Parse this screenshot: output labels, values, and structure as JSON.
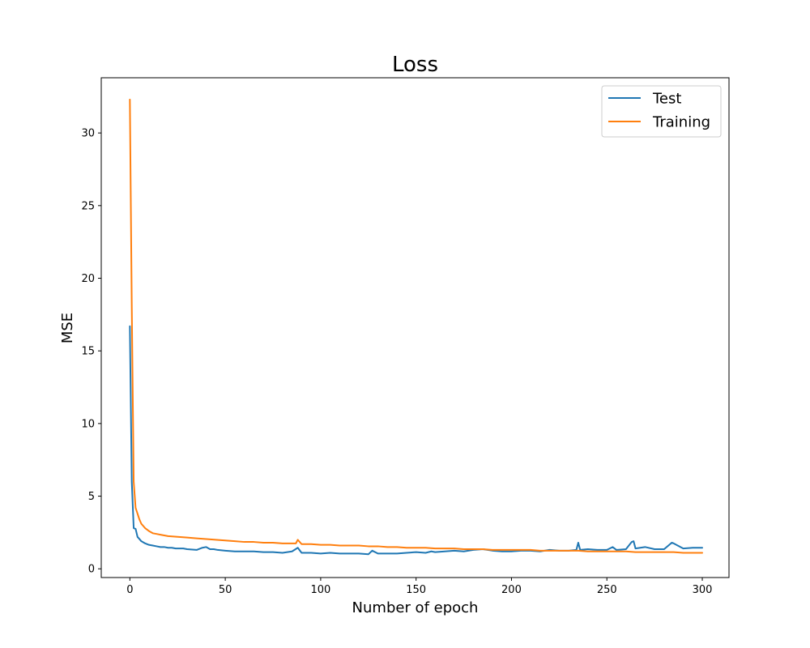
{
  "chart_data": {
    "type": "line",
    "title": "Loss",
    "xlabel": "Number of epoch",
    "ylabel": "MSE",
    "xlim": [
      -15,
      314
    ],
    "ylim": [
      -0.6,
      33.8
    ],
    "xticks": [
      0,
      50,
      100,
      150,
      200,
      250,
      300
    ],
    "yticks": [
      0,
      5,
      10,
      15,
      20,
      25,
      30
    ],
    "grid": false,
    "legend_position": "top-right",
    "series": [
      {
        "name": "Test",
        "color": "#1f77b4",
        "x": [
          0,
          1,
          2,
          3,
          4,
          5,
          6,
          8,
          10,
          12,
          14,
          16,
          18,
          20,
          22,
          24,
          26,
          28,
          30,
          35,
          38,
          40,
          42,
          44,
          46,
          50,
          55,
          60,
          65,
          70,
          75,
          80,
          85,
          88,
          90,
          95,
          100,
          105,
          110,
          115,
          120,
          125,
          127,
          130,
          135,
          140,
          145,
          150,
          155,
          158,
          160,
          165,
          170,
          175,
          180,
          185,
          190,
          195,
          200,
          205,
          210,
          215,
          220,
          225,
          230,
          234,
          235,
          236,
          240,
          245,
          250,
          253,
          255,
          260,
          263,
          264,
          265,
          270,
          275,
          280,
          284,
          285,
          290,
          295,
          300
        ],
        "y": [
          16.7,
          6.0,
          2.8,
          2.75,
          2.2,
          2.05,
          1.9,
          1.75,
          1.65,
          1.6,
          1.55,
          1.5,
          1.5,
          1.45,
          1.45,
          1.4,
          1.4,
          1.4,
          1.35,
          1.3,
          1.45,
          1.5,
          1.35,
          1.35,
          1.3,
          1.25,
          1.2,
          1.2,
          1.2,
          1.15,
          1.15,
          1.1,
          1.2,
          1.45,
          1.1,
          1.1,
          1.05,
          1.1,
          1.05,
          1.05,
          1.05,
          1.0,
          1.25,
          1.05,
          1.05,
          1.05,
          1.1,
          1.15,
          1.1,
          1.2,
          1.15,
          1.2,
          1.25,
          1.2,
          1.3,
          1.35,
          1.25,
          1.2,
          1.2,
          1.25,
          1.25,
          1.2,
          1.3,
          1.25,
          1.25,
          1.3,
          1.8,
          1.3,
          1.35,
          1.3,
          1.3,
          1.5,
          1.3,
          1.35,
          1.85,
          1.9,
          1.4,
          1.5,
          1.35,
          1.35,
          1.8,
          1.75,
          1.4,
          1.45,
          1.45
        ]
      },
      {
        "name": "Training",
        "color": "#ff7f0e",
        "x": [
          0,
          1,
          2,
          3,
          4,
          5,
          6,
          8,
          10,
          12,
          14,
          16,
          18,
          20,
          25,
          30,
          35,
          40,
          45,
          50,
          55,
          60,
          65,
          70,
          75,
          80,
          85,
          87,
          88,
          90,
          95,
          100,
          105,
          110,
          115,
          120,
          125,
          130,
          135,
          140,
          145,
          150,
          155,
          160,
          165,
          170,
          175,
          180,
          185,
          190,
          195,
          200,
          205,
          210,
          215,
          220,
          225,
          230,
          235,
          240,
          245,
          250,
          255,
          260,
          265,
          270,
          275,
          280,
          285,
          290,
          295,
          300
        ],
        "y": [
          32.3,
          18.0,
          6.0,
          4.2,
          3.8,
          3.4,
          3.1,
          2.8,
          2.6,
          2.45,
          2.4,
          2.35,
          2.3,
          2.25,
          2.2,
          2.15,
          2.1,
          2.05,
          2.0,
          1.95,
          1.9,
          1.85,
          1.85,
          1.8,
          1.8,
          1.75,
          1.75,
          1.75,
          2.0,
          1.7,
          1.7,
          1.65,
          1.65,
          1.6,
          1.6,
          1.6,
          1.55,
          1.55,
          1.5,
          1.5,
          1.45,
          1.45,
          1.45,
          1.4,
          1.4,
          1.4,
          1.35,
          1.35,
          1.35,
          1.3,
          1.3,
          1.3,
          1.3,
          1.3,
          1.25,
          1.25,
          1.25,
          1.25,
          1.25,
          1.2,
          1.2,
          1.2,
          1.2,
          1.2,
          1.15,
          1.15,
          1.15,
          1.15,
          1.15,
          1.1,
          1.1,
          1.1
        ]
      }
    ]
  }
}
